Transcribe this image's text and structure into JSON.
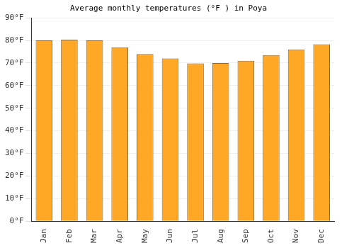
{
  "chart_data": {
    "type": "bar",
    "title": "Average monthly temperatures (°F ) in Poya",
    "categories": [
      "Jan",
      "Feb",
      "Mar",
      "Apr",
      "May",
      "Jun",
      "Jul",
      "Aug",
      "Sep",
      "Oct",
      "Nov",
      "Dec"
    ],
    "values": [
      80,
      80.3,
      80,
      77,
      74,
      72,
      69.8,
      70,
      71,
      73.5,
      76,
      78.3
    ],
    "color": "#ffa726",
    "ylim": [
      0,
      90
    ],
    "yticks": [
      {
        "value": 0,
        "label": "0°F"
      },
      {
        "value": 10,
        "label": "10°F"
      },
      {
        "value": 20,
        "label": "20°F"
      },
      {
        "value": 30,
        "label": "30°F"
      },
      {
        "value": 40,
        "label": "40°F"
      },
      {
        "value": 50,
        "label": "50°F"
      },
      {
        "value": 60,
        "label": "60°F"
      },
      {
        "value": 70,
        "label": "70°F"
      },
      {
        "value": 80,
        "label": "80°F"
      },
      {
        "value": 90,
        "label": "90°F"
      }
    ],
    "grid": true
  }
}
